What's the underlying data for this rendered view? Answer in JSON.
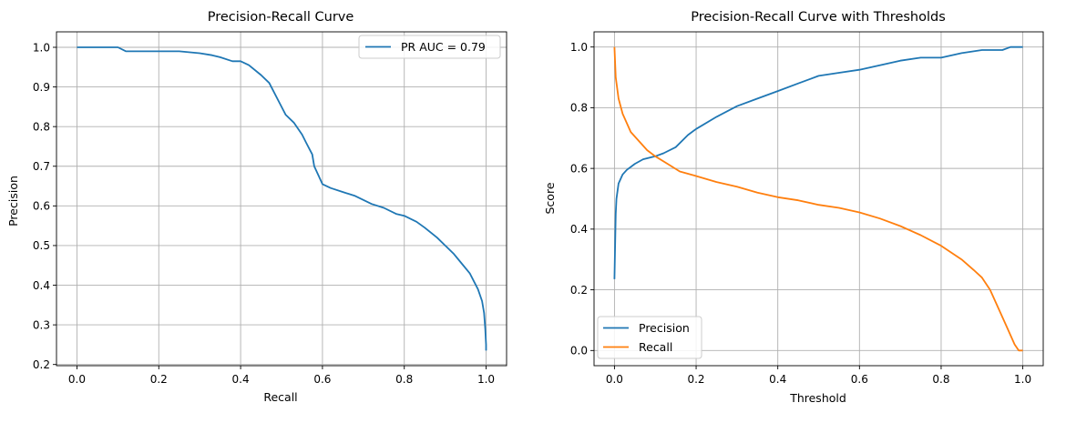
{
  "chart_data": [
    {
      "type": "line",
      "title": "Precision-Recall Curve",
      "xlabel": "Recall",
      "ylabel": "Precision",
      "xlim": [
        -0.05,
        1.05
      ],
      "ylim": [
        0.197,
        1.039
      ],
      "xticks": [
        0.0,
        0.2,
        0.4,
        0.6,
        0.8,
        1.0
      ],
      "xtick_labels": [
        "0.0",
        "0.2",
        "0.4",
        "0.6",
        "0.8",
        "1.0"
      ],
      "yticks": [
        0.2,
        0.3,
        0.4,
        0.5,
        0.6,
        0.7,
        0.8,
        0.9,
        1.0
      ],
      "ytick_labels": [
        "0.2",
        "0.3",
        "0.4",
        "0.5",
        "0.6",
        "0.7",
        "0.8",
        "0.9",
        "1.0"
      ],
      "grid": true,
      "legend_position": "upper right",
      "series": [
        {
          "name": "PR AUC = 0.79",
          "color": "#1f77b4",
          "x": [
            0.0,
            0.1,
            0.12,
            0.15,
            0.2,
            0.25,
            0.3,
            0.33,
            0.35,
            0.38,
            0.4,
            0.42,
            0.45,
            0.47,
            0.48,
            0.5,
            0.51,
            0.53,
            0.55,
            0.56,
            0.57,
            0.575,
            0.58,
            0.6,
            0.62,
            0.65,
            0.68,
            0.7,
            0.72,
            0.75,
            0.78,
            0.8,
            0.83,
            0.85,
            0.88,
            0.9,
            0.92,
            0.94,
            0.96,
            0.97,
            0.98,
            0.99,
            0.995,
            0.998,
            1.0,
            1.0
          ],
          "y": [
            1.0,
            1.0,
            0.99,
            0.99,
            0.99,
            0.99,
            0.985,
            0.98,
            0.975,
            0.965,
            0.965,
            0.955,
            0.93,
            0.91,
            0.89,
            0.85,
            0.83,
            0.81,
            0.78,
            0.76,
            0.74,
            0.73,
            0.7,
            0.655,
            0.645,
            0.635,
            0.625,
            0.615,
            0.605,
            0.595,
            0.58,
            0.575,
            0.56,
            0.545,
            0.52,
            0.5,
            0.48,
            0.455,
            0.43,
            0.41,
            0.39,
            0.36,
            0.33,
            0.29,
            0.25,
            0.235
          ]
        }
      ]
    },
    {
      "type": "line",
      "title": "Precision-Recall Curve with Thresholds",
      "xlabel": "Threshold",
      "ylabel": "Score",
      "xlim": [
        -0.05,
        1.05
      ],
      "ylim": [
        -0.05,
        1.05
      ],
      "xticks": [
        0.0,
        0.2,
        0.4,
        0.6,
        0.8,
        1.0
      ],
      "xtick_labels": [
        "0.0",
        "0.2",
        "0.4",
        "0.6",
        "0.8",
        "1.0"
      ],
      "yticks": [
        0.0,
        0.2,
        0.4,
        0.6,
        0.8,
        1.0
      ],
      "ytick_labels": [
        "0.0",
        "0.2",
        "0.4",
        "0.6",
        "0.8",
        "1.0"
      ],
      "grid": true,
      "legend_position": "lower left",
      "series": [
        {
          "name": "Precision",
          "color": "#1f77b4",
          "x": [
            0.0,
            0.003,
            0.005,
            0.01,
            0.02,
            0.03,
            0.05,
            0.07,
            0.1,
            0.12,
            0.15,
            0.18,
            0.2,
            0.25,
            0.3,
            0.35,
            0.4,
            0.45,
            0.5,
            0.55,
            0.6,
            0.65,
            0.7,
            0.75,
            0.8,
            0.85,
            0.9,
            0.95,
            0.97,
            0.99,
            1.0
          ],
          "y": [
            0.235,
            0.45,
            0.5,
            0.55,
            0.58,
            0.595,
            0.615,
            0.63,
            0.64,
            0.65,
            0.67,
            0.71,
            0.73,
            0.77,
            0.805,
            0.83,
            0.855,
            0.88,
            0.905,
            0.915,
            0.925,
            0.94,
            0.955,
            0.965,
            0.965,
            0.98,
            0.99,
            0.99,
            1.0,
            1.0,
            1.0
          ]
        },
        {
          "name": "Recall",
          "color": "#ff7f0e",
          "x": [
            0.0,
            0.003,
            0.01,
            0.02,
            0.04,
            0.06,
            0.08,
            0.1,
            0.13,
            0.16,
            0.2,
            0.25,
            0.3,
            0.35,
            0.4,
            0.45,
            0.5,
            0.55,
            0.6,
            0.65,
            0.7,
            0.75,
            0.8,
            0.85,
            0.88,
            0.9,
            0.92,
            0.94,
            0.96,
            0.98,
            0.99,
            1.0
          ],
          "y": [
            1.0,
            0.9,
            0.83,
            0.78,
            0.72,
            0.69,
            0.66,
            0.64,
            0.615,
            0.59,
            0.575,
            0.555,
            0.54,
            0.52,
            0.505,
            0.495,
            0.48,
            0.47,
            0.455,
            0.435,
            0.41,
            0.38,
            0.345,
            0.3,
            0.265,
            0.24,
            0.2,
            0.14,
            0.08,
            0.02,
            0.0,
            0.0
          ]
        }
      ]
    }
  ]
}
